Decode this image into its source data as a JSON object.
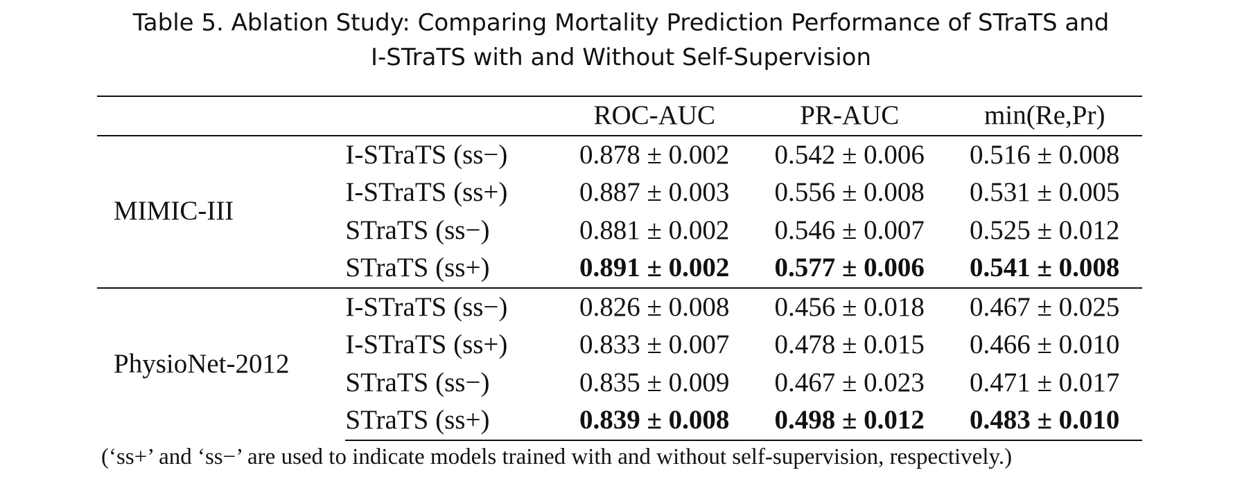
{
  "caption": {
    "line1": "Table 5.  Ablation Study: Comparing Mortality Prediction Performance of STraTS and",
    "line2": "I-STraTS with and Without Self-Supervision"
  },
  "table": {
    "columns": [
      "",
      "",
      "ROC-AUC",
      "PR-AUC",
      "min(Re,Pr)"
    ],
    "groups": [
      {
        "dataset": "MIMIC-III",
        "rows": [
          {
            "model": "I-STraTS (ss−)",
            "roc": "0.878 ± 0.002",
            "pr": "0.542 ± 0.006",
            "minrp": "0.516 ± 0.008",
            "best": false
          },
          {
            "model": "I-STraTS (ss+)",
            "roc": "0.887 ± 0.003",
            "pr": "0.556 ± 0.008",
            "minrp": "0.531 ± 0.005",
            "best": false
          },
          {
            "model": "STraTS (ss−)",
            "roc": "0.881 ± 0.002",
            "pr": "0.546 ± 0.007",
            "minrp": "0.525 ± 0.012",
            "best": false
          },
          {
            "model": "STraTS (ss+)",
            "roc": "0.891 ± 0.002",
            "pr": "0.577 ± 0.006",
            "minrp": "0.541 ± 0.008",
            "best": true
          }
        ]
      },
      {
        "dataset": "PhysioNet-2012",
        "rows": [
          {
            "model": "I-STraTS (ss−)",
            "roc": "0.826 ± 0.008",
            "pr": "0.456 ± 0.018",
            "minrp": "0.467 ± 0.025",
            "best": false
          },
          {
            "model": "I-STraTS (ss+)",
            "roc": "0.833 ± 0.007",
            "pr": "0.478 ± 0.015",
            "minrp": "0.466 ± 0.010",
            "best": false
          },
          {
            "model": "STraTS (ss−)",
            "roc": "0.835 ± 0.009",
            "pr": "0.467 ± 0.023",
            "minrp": "0.471 ± 0.017",
            "best": false
          },
          {
            "model": "STraTS (ss+)",
            "roc": "0.839 ± 0.008",
            "pr": "0.498 ± 0.012",
            "minrp": "0.483 ± 0.010",
            "best": true
          }
        ]
      }
    ]
  },
  "footnote": "(‘ss+’ and ‘ss−’ are used to indicate models trained with and without self-supervision, respectively.)"
}
